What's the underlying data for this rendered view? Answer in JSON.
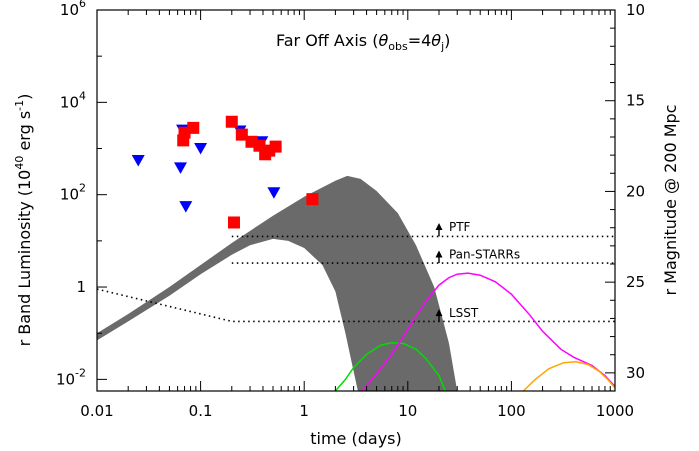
{
  "chart_data": {
    "type": "scatter",
    "title": "Far Off Axis (θobs=4θj)",
    "title_parts": {
      "main": "Far Off Axis (",
      "theta1": "θ",
      "sub_obs": "obs",
      "equals": "=4",
      "theta2": "θ",
      "sub_j": "j",
      "close": ")"
    },
    "xlabel": "time (days)",
    "ylabel": "r Band Luminosity (10⁴⁰ erg s⁻¹)",
    "ylabel_parts": {
      "pre": "r Band Luminosity (10",
      "exp1": "40",
      "mid": " erg s",
      "exp2": "-1",
      "post": ")"
    },
    "y2label": "r Magnitude @ 200 Mpc",
    "xscale": "log",
    "yscale": "log",
    "xlim": [
      0.01,
      1000
    ],
    "ylim": [
      0.0056,
      1000000
    ],
    "x_ticks": [
      {
        "value": 0.01,
        "label": "0.01"
      },
      {
        "value": 0.1,
        "label": "0.1"
      },
      {
        "value": 1,
        "label": "1"
      },
      {
        "value": 10,
        "label": "10"
      },
      {
        "value": 100,
        "label": "100"
      },
      {
        "value": 1000,
        "label": "1000"
      }
    ],
    "y_ticks": [
      {
        "value": 0.01,
        "base": "10",
        "exp": "-2"
      },
      {
        "value": 1,
        "base": "1",
        "exp": ""
      },
      {
        "value": 100,
        "base": "10",
        "exp": "2"
      },
      {
        "value": 10000,
        "base": "10",
        "exp": "4"
      },
      {
        "value": 1000000,
        "base": "10",
        "exp": "6"
      }
    ],
    "y2_ticks": [
      {
        "value": 10,
        "label": "10"
      },
      {
        "value": 15,
        "label": "15"
      },
      {
        "value": 20,
        "label": "20"
      },
      {
        "value": 25,
        "label": "25"
      },
      {
        "value": 30,
        "label": "30"
      }
    ],
    "y2lim": [
      10,
      31.0
    ],
    "series": [
      {
        "marker": "square",
        "color": "#ff0000",
        "points": [
          [
            0.068,
            1500
          ],
          [
            0.07,
            2200
          ],
          [
            0.085,
            2800
          ],
          [
            0.2,
            3800
          ],
          [
            0.21,
            25
          ],
          [
            0.25,
            2000
          ],
          [
            0.31,
            1400
          ],
          [
            0.37,
            1150
          ],
          [
            0.42,
            750
          ],
          [
            0.46,
            900
          ],
          [
            0.53,
            1100
          ],
          [
            1.2,
            80
          ]
        ]
      },
      {
        "marker": "triangle-down",
        "color": "#0000ff",
        "points": [
          [
            0.025,
            550
          ],
          [
            0.064,
            380
          ],
          [
            0.067,
            2500
          ],
          [
            0.072,
            55
          ],
          [
            0.1,
            1000
          ],
          [
            0.24,
            2400
          ],
          [
            0.39,
            1400
          ],
          [
            0.51,
            110
          ]
        ]
      },
      {
        "type": "band",
        "color": "#6a6a6a",
        "upper": [
          [
            0.01,
            0.1
          ],
          [
            0.02,
            0.26
          ],
          [
            0.05,
            1.0
          ],
          [
            0.1,
            3.0
          ],
          [
            0.2,
            9
          ],
          [
            0.5,
            35
          ],
          [
            1,
            90
          ],
          [
            2,
            200
          ],
          [
            2.6,
            255
          ],
          [
            3.5,
            220
          ],
          [
            5,
            120
          ],
          [
            8,
            40
          ],
          [
            12,
            8
          ],
          [
            18,
            1
          ],
          [
            25,
            0.06
          ],
          [
            30,
            0.0056
          ]
        ],
        "lower": [
          [
            0.01,
            0.07
          ],
          [
            0.02,
            0.18
          ],
          [
            0.05,
            0.65
          ],
          [
            0.1,
            1.9
          ],
          [
            0.2,
            5
          ],
          [
            0.3,
            8
          ],
          [
            0.5,
            11
          ],
          [
            0.7,
            10
          ],
          [
            1,
            7
          ],
          [
            1.5,
            3
          ],
          [
            2,
            0.8
          ],
          [
            2.5,
            0.1
          ],
          [
            3,
            0.015
          ],
          [
            3.3,
            0.0056
          ]
        ]
      },
      {
        "type": "line",
        "color": "#00dd00",
        "points": [
          [
            2,
            0.0056
          ],
          [
            2.5,
            0.01
          ],
          [
            3,
            0.018
          ],
          [
            4,
            0.035
          ],
          [
            5.5,
            0.055
          ],
          [
            7,
            0.062
          ],
          [
            9,
            0.06
          ],
          [
            12,
            0.045
          ],
          [
            15,
            0.028
          ],
          [
            20,
            0.012
          ],
          [
            23,
            0.0056
          ]
        ]
      },
      {
        "type": "line",
        "color": "#ff00ff",
        "points": [
          [
            3.6,
            0.0056
          ],
          [
            5,
            0.013
          ],
          [
            7,
            0.035
          ],
          [
            10,
            0.12
          ],
          [
            15,
            0.5
          ],
          [
            20,
            1.1
          ],
          [
            25,
            1.6
          ],
          [
            30,
            1.9
          ],
          [
            38,
            2.0
          ],
          [
            50,
            1.8
          ],
          [
            70,
            1.3
          ],
          [
            100,
            0.7
          ],
          [
            150,
            0.25
          ],
          [
            200,
            0.11
          ],
          [
            300,
            0.045
          ],
          [
            400,
            0.03
          ],
          [
            600,
            0.02
          ],
          [
            800,
            0.012
          ],
          [
            1000,
            0.007
          ]
        ]
      },
      {
        "type": "line",
        "color": "#ffa500",
        "points": [
          [
            130,
            0.0056
          ],
          [
            170,
            0.01
          ],
          [
            230,
            0.017
          ],
          [
            320,
            0.023
          ],
          [
            420,
            0.024
          ],
          [
            550,
            0.021
          ],
          [
            700,
            0.015
          ],
          [
            850,
            0.01
          ],
          [
            1000,
            0.0065
          ]
        ]
      },
      {
        "type": "dotted",
        "color": "#000000",
        "points": [
          [
            0.2,
            12.5
          ],
          [
            1000,
            12.5
          ]
        ]
      },
      {
        "type": "dotted",
        "color": "#000000",
        "points": [
          [
            0.2,
            3.3
          ],
          [
            1000,
            3.3
          ]
        ]
      },
      {
        "type": "dotted",
        "color": "#000000",
        "points": [
          [
            0.01,
            0.9
          ],
          [
            0.2,
            0.18
          ],
          [
            1000,
            0.18
          ]
        ]
      }
    ],
    "annotations": [
      {
        "text": "PTF",
        "x": 20,
        "y": 12.5,
        "arrow_base": 12.5,
        "arrow_tip": 22
      },
      {
        "text": "Pan-STARRs",
        "x": 20,
        "y": 3.3,
        "arrow_base": 3.3,
        "arrow_tip": 5.6
      },
      {
        "text": "LSST",
        "x": 20,
        "y": 0.18,
        "arrow_base": 0.18,
        "arrow_tip": 0.3
      }
    ]
  }
}
